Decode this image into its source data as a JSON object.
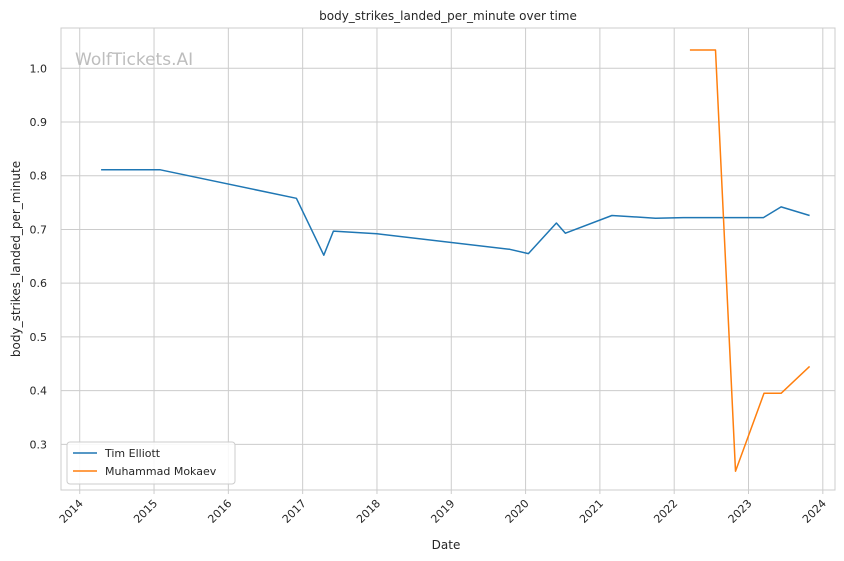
{
  "chart_data": {
    "type": "line",
    "title": "body_strikes_landed_per_minute over time",
    "xlabel": "Date",
    "ylabel": "body_strikes_landed_per_minute",
    "watermark": "WolfTickets.AI",
    "x_ticks": [
      "2014",
      "2015",
      "2016",
      "2017",
      "2018",
      "2019",
      "2020",
      "2021",
      "2022",
      "2023",
      "2024"
    ],
    "y_ticks": [
      "0.3",
      "0.4",
      "0.5",
      "0.6",
      "0.7",
      "0.8",
      "0.9",
      "1.0"
    ],
    "ylim": [
      0.215,
      1.075
    ],
    "xlim": [
      "2013-10-01",
      "2024-03-01"
    ],
    "grid": true,
    "legend_position": "lower-left",
    "series": [
      {
        "name": "Tim Elliott",
        "color": "#1f77b4",
        "points": [
          {
            "x": "2014-04-16",
            "y": 0.811
          },
          {
            "x": "2015-02-01",
            "y": 0.811
          },
          {
            "x": "2016-12-01",
            "y": 0.758
          },
          {
            "x": "2017-04-15",
            "y": 0.652
          },
          {
            "x": "2017-06-01",
            "y": 0.697
          },
          {
            "x": "2018-01-01",
            "y": 0.692
          },
          {
            "x": "2019-10-15",
            "y": 0.663
          },
          {
            "x": "2020-01-15",
            "y": 0.655
          },
          {
            "x": "2020-06-01",
            "y": 0.712
          },
          {
            "x": "2020-07-15",
            "y": 0.693
          },
          {
            "x": "2021-03-01",
            "y": 0.726
          },
          {
            "x": "2021-10-01",
            "y": 0.721
          },
          {
            "x": "2022-02-15",
            "y": 0.722
          },
          {
            "x": "2023-03-15",
            "y": 0.722
          },
          {
            "x": "2023-06-10",
            "y": 0.742
          },
          {
            "x": "2023-10-28",
            "y": 0.726
          }
        ]
      },
      {
        "name": "Muhammad Mokaev",
        "color": "#ff7f0e",
        "points": [
          {
            "x": "2022-03-19",
            "y": 1.034
          },
          {
            "x": "2022-07-23",
            "y": 1.034
          },
          {
            "x": "2022-10-29",
            "y": 0.25
          },
          {
            "x": "2023-03-18",
            "y": 0.395
          },
          {
            "x": "2023-06-10",
            "y": 0.395
          },
          {
            "x": "2023-10-28",
            "y": 0.445
          }
        ]
      }
    ]
  }
}
